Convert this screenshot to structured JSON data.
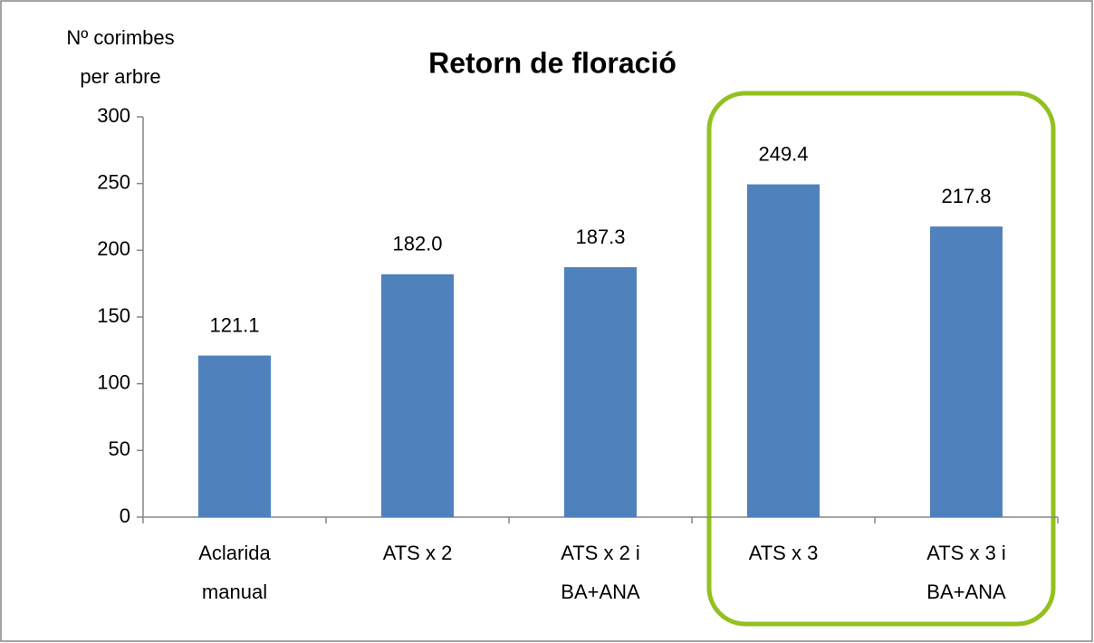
{
  "chart_data": {
    "type": "bar",
    "title": "Retorn de floració",
    "y_label": "Nº corimbes\nper arbre",
    "categories": [
      "Aclarida\nmanual",
      "ATS x 2",
      "ATS x 2 i\nBA+ANA",
      "ATS x 3",
      "ATS x 3 i\nBA+ANA"
    ],
    "values": [
      121.1,
      182.0,
      187.3,
      249.4,
      217.8
    ],
    "value_labels": [
      "121.1",
      "182.0",
      "187.3",
      "249.4",
      "217.8"
    ],
    "color": "#4f81bd",
    "ylim": [
      0,
      300
    ],
    "yticks": [
      0,
      50,
      100,
      150,
      200,
      250,
      300
    ],
    "grid": false
  }
}
